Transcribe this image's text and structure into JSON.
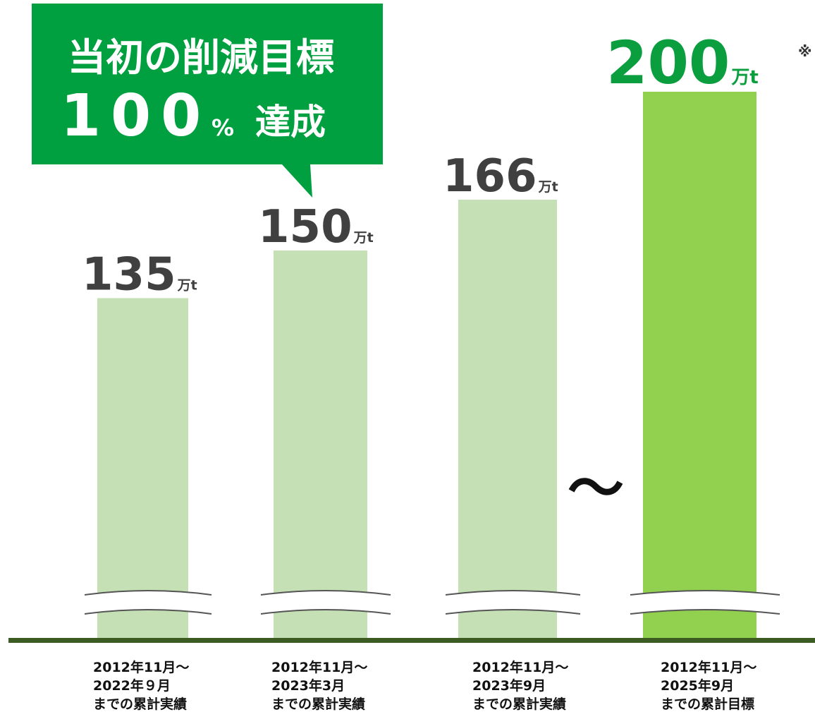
{
  "chart_data": {
    "type": "bar",
    "categories": [
      [
        "2012年11月〜",
        "2022年９月",
        "までの累計実績"
      ],
      [
        "2012年11月〜",
        "2023年3月",
        "までの累計実績"
      ],
      [
        "2012年11月〜",
        "2023年9月",
        "までの累計実績"
      ],
      [
        "2012年11月〜",
        "2025年9月",
        "までの累計目標"
      ]
    ],
    "values": [
      135,
      150,
      166,
      200
    ],
    "unit": "万t",
    "colors": [
      "#c5e0b4",
      "#c5e0b4",
      "#c5e0b4",
      "#92d050"
    ],
    "label_colors": [
      "#404040",
      "#404040",
      "#404040",
      "#0a9e3f"
    ],
    "note_mark": "※",
    "tilde": "〜",
    "callout": {
      "line1": "当初の削減目標",
      "number": "100",
      "percent": "%",
      "word": "達成"
    }
  }
}
